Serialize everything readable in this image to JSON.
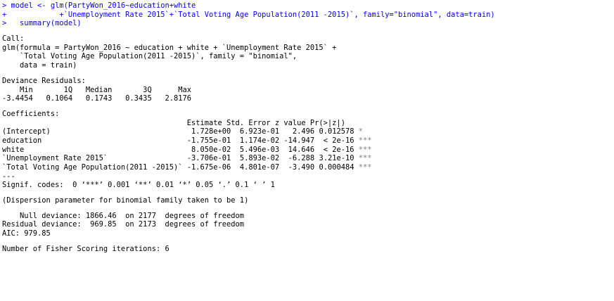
{
  "colors": {
    "input_text": "#0000ff",
    "output_text": "#000000",
    "significance_stars": "#808080",
    "background": "#ffffff"
  },
  "input": {
    "prompt": ">",
    "continuation": "+",
    "line1": " model <- glm(PartyWon_2016~education+white",
    "line2": "            +`Unemployment Rate 2015`+`Total Voting Age Population(2011 -2015)`, family=\"binomial\", data=train)",
    "line3": "   summary(model)"
  },
  "output": {
    "call_header": "Call:",
    "call_line1": "glm(formula = PartyWon_2016 ~ education + white + `Unemployment Rate 2015` +",
    "call_line2": "    `Total Voting Age Population(2011 -2015)`, family = \"binomial\",",
    "call_line3": "    data = train)",
    "dev_resid_header": "Deviance Residuals:",
    "dev_resid_labels": "    Min       1Q   Median       3Q      Max",
    "dev_resid_values": "-3.4454   0.1064   0.1743   0.3435   2.8176",
    "coef_header": "Coefficients:",
    "coef_columns": "                                          Estimate Std. Error z value Pr(>|z|)",
    "coefficients": [
      {
        "term": "(Intercept)",
        "estimate": "1.728e+00",
        "se": "6.923e-01",
        "z": "2.496",
        "p": "0.012578",
        "stars": "*"
      },
      {
        "term": "education",
        "estimate": "-1.755e-01",
        "se": "1.174e-02",
        "z": "-14.947",
        "p": "< 2e-16",
        "stars": "***"
      },
      {
        "term": "white",
        "estimate": "8.050e-02",
        "se": "5.496e-03",
        "z": "14.646",
        "p": "< 2e-16",
        "stars": "***"
      },
      {
        "term": "`Unemployment Rate 2015`",
        "estimate": "-3.706e-01",
        "se": "5.893e-02",
        "z": "-6.288",
        "p": "3.21e-10",
        "stars": "***"
      },
      {
        "term": "`Total Voting Age Population(2011 -2015)`",
        "estimate": "-1.675e-06",
        "se": "4.801e-07",
        "z": "-3.490",
        "p": "0.000484",
        "stars": "***"
      }
    ],
    "separator": "---",
    "signif_codes": "Signif. codes:  0 ‘***’ 0.001 ‘**’ 0.01 ‘*’ 0.05 ‘.’ 0.1 ‘ ’ 1",
    "dispersion": "(Dispersion parameter for binomial family taken to be 1)",
    "null_deviance": "    Null deviance: 1866.46  on 2177  degrees of freedom",
    "residual_deviance": "Residual deviance:  969.85  on 2173  degrees of freedom",
    "aic": "AIC: 979.85",
    "fisher": "Number of Fisher Scoring iterations: 6"
  }
}
